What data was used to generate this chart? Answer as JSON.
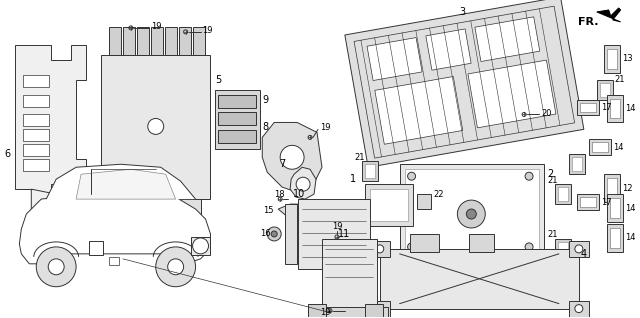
{
  "bg_color": "#ffffff",
  "line_color": "#333333",
  "fig_w": 6.4,
  "fig_h": 3.18,
  "dpi": 100,
  "gray": "#888888",
  "dgray": "#444444"
}
